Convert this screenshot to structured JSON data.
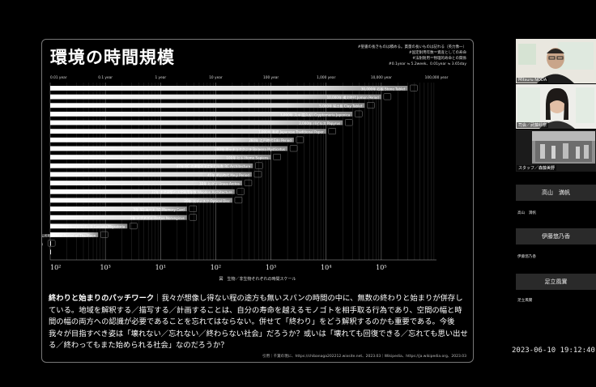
{
  "slide": {
    "title": "環境の時間規模",
    "notes": [
      "#聖書の長きものは積める。貫量の長いものは記れる（英力像一）",
      "#固定耐用年数＝資産としての寿命",
      "#法耐耐用＝物理的寿命との関係",
      "#0.1year ≒ 5.2week、0.01year ≒ 3.65day"
    ],
    "body_lead": "終わりと始まりのパッチワーク",
    "body_text": "｜我々が想像し得ない程の途方も無いスパンの時間の中に、無数の終わりと始まりが併存している。地域を解釈する／描写する／計画することは、自分の寿命を越えるモノゴトを相手取る行為であり、空間の幅と時間の幅の両方への認識が必要であることを忘れてはならない。併せて「終わり」をどう解釈するのかも重要である。今後我々が目指すべき姿は「壊れない／忘れない／終わらない社会」だろうか？或いは「壊れても回復できる／忘れても思い出せる／終わってもまた始められる社会」なのだろうか？",
    "source": "引用｜千葉の現に、https://chibanaga202212.wixsite.net、2023.03｜Wikipedia、https://ja.wikipedia.org、2023.03"
  },
  "chart_data": {
    "type": "bar",
    "orientation": "horizontal",
    "scale": "log",
    "top_ticks": [
      "0.01 year",
      "0.1 year",
      "1 year",
      "10 year",
      "100 year",
      "1,000 year",
      "10,000 year",
      "100,000 year"
    ],
    "bottom_ticks": [
      "10²",
      "10³",
      "10¹",
      "10²",
      "10³",
      "10⁴",
      "10⁵"
    ],
    "xlabel": "図　生物／非生物それぞれの時間スケール",
    "xlim_years": [
      0.01,
      100000
    ],
    "categories": [
      "30,000年 石板 Stone Tablet",
      "10,000年 縄文時代 Jomon Period",
      "5,000年 粘土板 Clay Tablet",
      "3,000年 スギ(屋久杉) Cryptomeria Japonica",
      "2,000年 パピルス Papyrus",
      "1,000年 和紙 Japanese Traditional Paper",
      "260年 江戸時代 Edo Period",
      "200年 ホッキョククジラ Balaena Mysticetus",
      "100年 ヒト Homo Sapiens",
      "47年 RC 造建築の法定耐用年数 RC Architecture",
      "45年 明治時代 Meiji Period",
      "30年 ヒグマ Ursus Arctos",
      "22年 木造建築の法定耐用年数 Wooden Architecture",
      "20年 光ディスク Optical Disc",
      "3年 SD カード SD Memory Card",
      "3年 ドブネズミ Rattus Norvegicus",
      "3ヶ月 トノサマバッタ Locusta Migratoria",
      "27日 月の公転周期 Orbital Period of The Moon",
      "72時間 コロナウイルスの生存期間 Novel Coronavirus",
      "24時間 インスタグラムのストーリー公開期間 Instagram Story"
    ],
    "values_years": [
      30000,
      10000,
      5000,
      3000,
      2000,
      1000,
      260,
      200,
      100,
      47,
      45,
      30,
      22,
      20,
      3,
      3,
      0.25,
      0.074,
      0.0082,
      0.0027
    ]
  },
  "participants": [
    {
      "name": "Mitsuru NODA",
      "kind": "video",
      "icon": "person-with-glasses-icon"
    },
    {
      "name": "司会／武藤紗奈",
      "kind": "video",
      "icon": "person-icon"
    },
    {
      "name": "スタッフ／森藤美野",
      "kind": "video",
      "icon": "crowd-image-icon"
    },
    {
      "name": "高山　満帆",
      "kind": "plain",
      "sub": "高山　満帆"
    },
    {
      "name": "伊藤悠乃香",
      "kind": "plain",
      "sub": "伊藤悠乃香"
    },
    {
      "name": "足立風實",
      "kind": "plain",
      "sub": "足立風實"
    }
  ],
  "timestamp": "2023-06-10 19:12:40"
}
